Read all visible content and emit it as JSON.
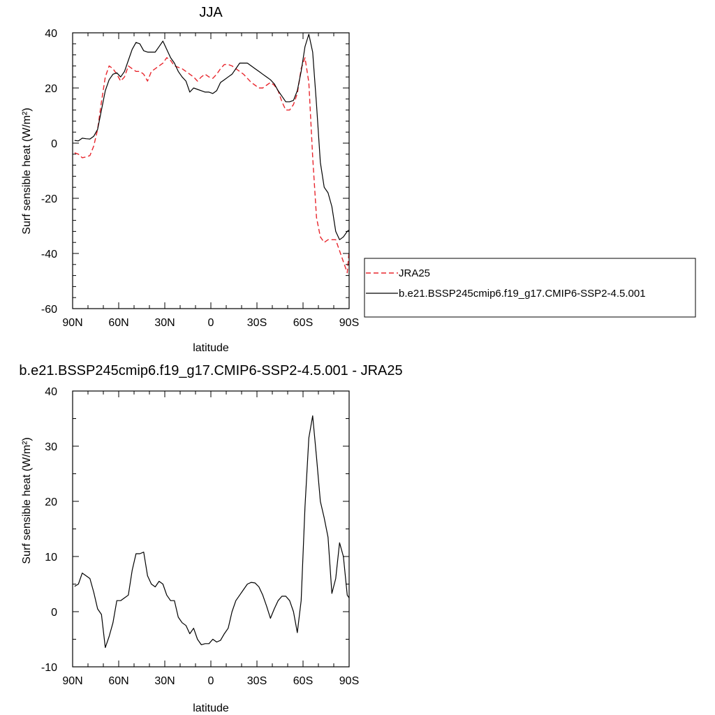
{
  "chart_data": [
    {
      "type": "line",
      "title": "JJA",
      "xlabel": "latitude",
      "ylabel": "Surf sensible heat (W/m²)",
      "xlim": [
        90,
        -90
      ],
      "ylim": [
        -60,
        40
      ],
      "x_ticks": [
        {
          "value": 90,
          "label": "90N"
        },
        {
          "value": 60,
          "label": "60N"
        },
        {
          "value": 30,
          "label": "30N"
        },
        {
          "value": 0,
          "label": "0"
        },
        {
          "value": -30,
          "label": "30S"
        },
        {
          "value": -60,
          "label": "60S"
        },
        {
          "value": -90,
          "label": "90S"
        }
      ],
      "y_ticks": [
        {
          "value": 40,
          "label": "40"
        },
        {
          "value": 20,
          "label": "20"
        },
        {
          "value": 0,
          "label": "0"
        },
        {
          "value": -20,
          "label": "-20"
        },
        {
          "value": -40,
          "label": "-40"
        },
        {
          "value": -60,
          "label": "-60"
        }
      ],
      "grid": false,
      "legend_position": "right",
      "series": [
        {
          "name": "JRA25",
          "color": "#e8262d",
          "dash": true,
          "points": [
            [
              88.75,
              -3.5
            ],
            [
              86.25,
              -4
            ],
            [
              83.75,
              -5.3
            ],
            [
              81.25,
              -5
            ],
            [
              78.75,
              -4.5
            ],
            [
              76.25,
              -1
            ],
            [
              73.75,
              5
            ],
            [
              71.25,
              15
            ],
            [
              68.75,
              24
            ],
            [
              66.25,
              28
            ],
            [
              63.75,
              27
            ],
            [
              61.25,
              25
            ],
            [
              58.75,
              22.5
            ],
            [
              56.25,
              24
            ],
            [
              53.75,
              28
            ],
            [
              51.25,
              27
            ],
            [
              48.75,
              26
            ],
            [
              46.25,
              26
            ],
            [
              43.75,
              25
            ],
            [
              41.25,
              22.5
            ],
            [
              38.75,
              26
            ],
            [
              36.25,
              27
            ],
            [
              33.75,
              28
            ],
            [
              31.25,
              29
            ],
            [
              28.75,
              31
            ],
            [
              26.25,
              30
            ],
            [
              23.75,
              28
            ],
            [
              21.25,
              27.5
            ],
            [
              18.75,
              27
            ],
            [
              16.25,
              26
            ],
            [
              13.75,
              25
            ],
            [
              11.25,
              24
            ],
            [
              8.75,
              22.5
            ],
            [
              6.25,
              24
            ],
            [
              3.75,
              25
            ],
            [
              1.25,
              24
            ],
            [
              -1.25,
              23.5
            ],
            [
              -3.75,
              25
            ],
            [
              -6.25,
              27
            ],
            [
              -8.75,
              28.5
            ],
            [
              -11.25,
              28.5
            ],
            [
              -13.75,
              28
            ],
            [
              -16.25,
              27
            ],
            [
              -18.75,
              26
            ],
            [
              -21.25,
              25
            ],
            [
              -23.75,
              23.5
            ],
            [
              -26.25,
              22
            ],
            [
              -28.75,
              21
            ],
            [
              -31.25,
              20
            ],
            [
              -33.75,
              20
            ],
            [
              -36.25,
              21
            ],
            [
              -38.75,
              22
            ],
            [
              -41.25,
              21
            ],
            [
              -43.75,
              19
            ],
            [
              -46.25,
              15
            ],
            [
              -48.75,
              12
            ],
            [
              -51.25,
              12
            ],
            [
              -53.75,
              14
            ],
            [
              -56.25,
              18
            ],
            [
              -58.75,
              27
            ],
            [
              -61.25,
              31
            ],
            [
              -63.75,
              22
            ],
            [
              -66.25,
              -5
            ],
            [
              -68.75,
              -27
            ],
            [
              -71.25,
              -34
            ],
            [
              -73.75,
              -36
            ],
            [
              -76.25,
              -35
            ],
            [
              -78.75,
              -35
            ],
            [
              -81.25,
              -35
            ],
            [
              -83.75,
              -39
            ],
            [
              -86.25,
              -43
            ],
            [
              -88.75,
              -47
            ],
            [
              -90,
              -39
            ]
          ]
        },
        {
          "name": "b.e21.BSSP245cmip6.f19_g17.CMIP6-SSP2-4.5.001",
          "color": "#000000",
          "dash": false,
          "points": [
            [
              88.75,
              1
            ],
            [
              86.25,
              0.8
            ],
            [
              83.75,
              1.8
            ],
            [
              81.25,
              1.6
            ],
            [
              78.75,
              1.5
            ],
            [
              76.25,
              2.5
            ],
            [
              73.75,
              5
            ],
            [
              71.25,
              12
            ],
            [
              68.75,
              19
            ],
            [
              66.25,
              23
            ],
            [
              63.75,
              25
            ],
            [
              61.25,
              25.5
            ],
            [
              58.75,
              24
            ],
            [
              56.25,
              26
            ],
            [
              53.75,
              30
            ],
            [
              51.25,
              34
            ],
            [
              48.75,
              36.5
            ],
            [
              46.25,
              36
            ],
            [
              43.75,
              33.5
            ],
            [
              41.25,
              33
            ],
            [
              38.75,
              33
            ],
            [
              36.25,
              33
            ],
            [
              33.75,
              35
            ],
            [
              31.25,
              37
            ],
            [
              28.75,
              34
            ],
            [
              26.25,
              31
            ],
            [
              23.75,
              29
            ],
            [
              21.25,
              26
            ],
            [
              18.75,
              24
            ],
            [
              16.25,
              22.5
            ],
            [
              13.75,
              18.5
            ],
            [
              11.25,
              20
            ],
            [
              8.75,
              19.5
            ],
            [
              6.25,
              19
            ],
            [
              3.75,
              18.5
            ],
            [
              1.25,
              18.5
            ],
            [
              -1.25,
              18
            ],
            [
              -3.75,
              19
            ],
            [
              -6.25,
              22
            ],
            [
              -8.75,
              23
            ],
            [
              -11.25,
              24
            ],
            [
              -13.75,
              25
            ],
            [
              -16.25,
              27
            ],
            [
              -18.75,
              29
            ],
            [
              -21.25,
              29
            ],
            [
              -23.75,
              29
            ],
            [
              -26.25,
              28
            ],
            [
              -28.75,
              27
            ],
            [
              -31.25,
              26
            ],
            [
              -33.75,
              25
            ],
            [
              -36.25,
              24
            ],
            [
              -38.75,
              23
            ],
            [
              -41.25,
              21.5
            ],
            [
              -43.75,
              19
            ],
            [
              -46.25,
              17
            ],
            [
              -48.75,
              15
            ],
            [
              -51.25,
              15
            ],
            [
              -53.75,
              15.5
            ],
            [
              -56.25,
              19
            ],
            [
              -58.75,
              26
            ],
            [
              -61.25,
              35
            ],
            [
              -63.75,
              39.5
            ],
            [
              -66.25,
              33
            ],
            [
              -68.75,
              14
            ],
            [
              -71.25,
              -7
            ],
            [
              -73.75,
              -16
            ],
            [
              -76.25,
              -18
            ],
            [
              -78.75,
              -23
            ],
            [
              -81.25,
              -32
            ],
            [
              -83.75,
              -35
            ],
            [
              -86.25,
              -34
            ],
            [
              -88.75,
              -32
            ],
            [
              -90,
              -31.5
            ]
          ]
        }
      ]
    },
    {
      "type": "line",
      "title": "b.e21.BSSP245cmip6.f19_g17.CMIP6-SSP2-4.5.001 - JRA25",
      "xlabel": "latitude",
      "ylabel": "Surf sensible heat (W/m²)",
      "xlim": [
        90,
        -90
      ],
      "ylim": [
        -10,
        40
      ],
      "x_ticks": [
        {
          "value": 90,
          "label": "90N"
        },
        {
          "value": 60,
          "label": "60N"
        },
        {
          "value": 30,
          "label": "30N"
        },
        {
          "value": 0,
          "label": "0"
        },
        {
          "value": -30,
          "label": "30S"
        },
        {
          "value": -60,
          "label": "60S"
        },
        {
          "value": -90,
          "label": "90S"
        }
      ],
      "y_ticks": [
        {
          "value": 40,
          "label": "40"
        },
        {
          "value": 30,
          "label": "30"
        },
        {
          "value": 20,
          "label": "20"
        },
        {
          "value": 10,
          "label": "10"
        },
        {
          "value": 0,
          "label": "0"
        },
        {
          "value": -10,
          "label": "-10"
        }
      ],
      "grid": false,
      "series": [
        {
          "color": "#000000",
          "dash": false,
          "points": [
            [
              88.75,
              4.6
            ],
            [
              86.25,
              5
            ],
            [
              83.75,
              7
            ],
            [
              81.25,
              6.5
            ],
            [
              78.75,
              6
            ],
            [
              76.25,
              3.5
            ],
            [
              73.75,
              0.5
            ],
            [
              71.25,
              -0.5
            ],
            [
              68.75,
              -6.5
            ],
            [
              66.25,
              -4.5
            ],
            [
              63.75,
              -2
            ],
            [
              61.25,
              2
            ],
            [
              58.75,
              2
            ],
            [
              56.25,
              2.5
            ],
            [
              53.75,
              3
            ],
            [
              51.25,
              7.5
            ],
            [
              48.75,
              10.5
            ],
            [
              46.25,
              10.5
            ],
            [
              43.75,
              10.8
            ],
            [
              41.25,
              6.5
            ],
            [
              38.75,
              5
            ],
            [
              36.25,
              4.5
            ],
            [
              33.75,
              5.5
            ],
            [
              31.25,
              5
            ],
            [
              28.75,
              3
            ],
            [
              26.25,
              2
            ],
            [
              23.75,
              2
            ],
            [
              21.25,
              -1
            ],
            [
              18.75,
              -2
            ],
            [
              16.25,
              -2.5
            ],
            [
              13.75,
              -4
            ],
            [
              11.25,
              -3
            ],
            [
              8.75,
              -5
            ],
            [
              6.25,
              -6
            ],
            [
              3.75,
              -5.8
            ],
            [
              1.25,
              -5.8
            ],
            [
              -1.25,
              -5
            ],
            [
              -3.75,
              -5.5
            ],
            [
              -6.25,
              -5.2
            ],
            [
              -8.75,
              -4
            ],
            [
              -11.25,
              -3
            ],
            [
              -13.75,
              0
            ],
            [
              -16.25,
              2
            ],
            [
              -18.75,
              3
            ],
            [
              -21.25,
              4
            ],
            [
              -23.75,
              5
            ],
            [
              -26.25,
              5.3
            ],
            [
              -28.75,
              5.2
            ],
            [
              -31.25,
              4.5
            ],
            [
              -33.75,
              3
            ],
            [
              -36.25,
              1
            ],
            [
              -38.75,
              -1.2
            ],
            [
              -41.25,
              0.5
            ],
            [
              -43.75,
              2
            ],
            [
              -46.25,
              2.8
            ],
            [
              -48.75,
              2.8
            ],
            [
              -51.25,
              2
            ],
            [
              -53.75,
              0
            ],
            [
              -56.25,
              -3.8
            ],
            [
              -58.75,
              2
            ],
            [
              -61.25,
              19
            ],
            [
              -63.75,
              31.5
            ],
            [
              -66.25,
              35.5
            ],
            [
              -68.75,
              28
            ],
            [
              -71.25,
              20
            ],
            [
              -73.75,
              17
            ],
            [
              -76.25,
              13.5
            ],
            [
              -78.75,
              3.3
            ],
            [
              -81.25,
              6
            ],
            [
              -83.75,
              12.5
            ],
            [
              -86.25,
              10
            ],
            [
              -88.75,
              3
            ],
            [
              -90,
              2.5
            ]
          ]
        }
      ]
    }
  ]
}
